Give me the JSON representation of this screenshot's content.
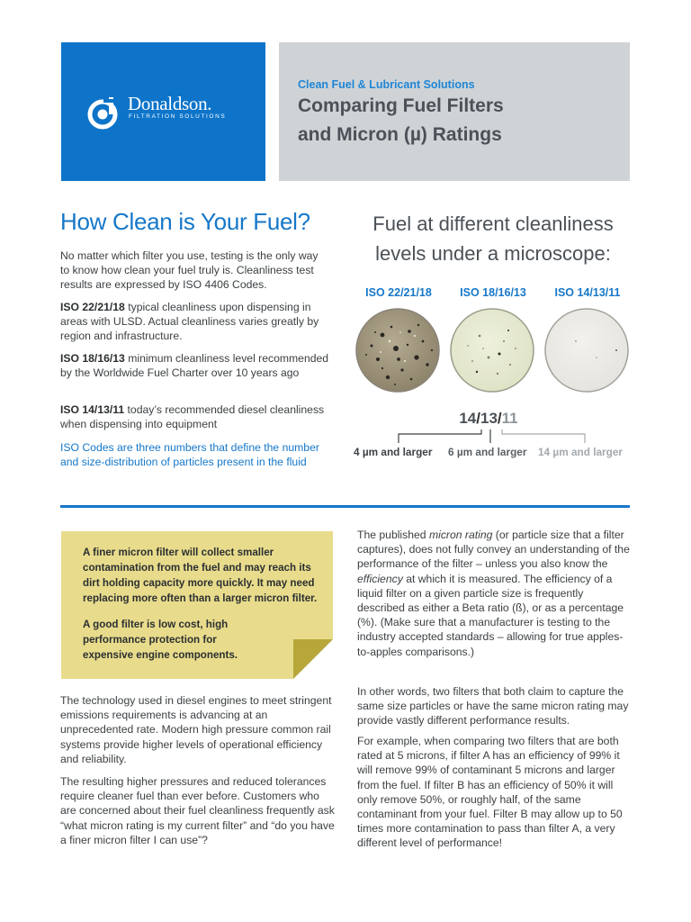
{
  "brand": {
    "name": "Donaldson.",
    "tagline": "FILTRATION SOLUTIONS",
    "color": "#0d74c9"
  },
  "header": {
    "kicker": "Clean Fuel & Lubricant Solutions",
    "title_line1": "Comparing Fuel Filters",
    "title_line2": "and Micron (µ) Ratings"
  },
  "left_top": {
    "heading": "How Clean is Your Fuel?",
    "intro": "No matter which filter you use, testing is the only way to know how clean your fuel truly is. Cleanliness test results are expressed by ISO 4406 Codes.",
    "iso_items": [
      {
        "code": "ISO 22/21/18",
        "text": " typical cleanliness upon dispensing in areas with ULSD. Actual cleanliness varies greatly by region and infrastructure."
      },
      {
        "code": "ISO 18/16/13",
        "text": " minimum cleanliness level recommended by the Worldwide Fuel Charter over 10 years ago"
      },
      {
        "code": "ISO 14/13/11",
        "text": " today’s recommended diesel cleanliness when dispensing into equipment"
      }
    ],
    "note": "ISO Codes are three numbers that define the number and size-distribution of particles present in the fluid"
  },
  "microscope": {
    "heading": "Fuel at different cleanliness levels under a microscope:",
    "samples": [
      "ISO 22/21/18",
      "ISO 18/16/13",
      "ISO 14/13/11"
    ],
    "code_parts": [
      "14",
      "/",
      "13",
      "/",
      "11"
    ],
    "size_labels": [
      "4 µm and larger",
      "6 µm and larger",
      "14 µm and larger"
    ]
  },
  "note_card": {
    "p1": "A finer micron filter will collect smaller contamination from the fuel and may reach its dirt holding capacity more quickly. It may need replacing more often than a larger micron filter.",
    "p2": "A good filter is low cost, high performance protection for expensive engine components.",
    "background": "#e8dc8c",
    "fold_color": "#b7a73a"
  },
  "left_bottom": {
    "p1": "The technology used in diesel engines to meet stringent emissions requirements is advancing at an unprecedented rate. Modern high pressure common rail systems provide higher levels of operational efficiency and reliability.",
    "p2": "The resulting higher pressures and reduced tolerances require cleaner fuel than ever before. Customers who are concerned about their fuel cleanliness frequently ask “what micron rating is my current filter” and “do you have a finer micron filter I can use”?"
  },
  "right": {
    "p1_parts": [
      "The published ",
      "micron rating",
      " (or particle size that a filter captures), does not fully convey an understanding of the performance of the filter – unless you also know the ",
      "efficiency",
      " at which it is measured. The efficiency of a liquid filter on a given particle size is frequently described as either a Beta ratio (ß), or as a percentage (%). (Make sure that a manufacturer is testing to the industry accepted standards – allowing for true apples-to-apples comparisons.)"
    ],
    "p2": "In other words, two filters that both claim to capture the same size particles or have the same micron rating may provide vastly different performance results.",
    "p3": "For example, when comparing two filters that are both rated at 5 microns, if filter A has an efficiency of 99% it will remove 99% of contaminant 5 microns and larger from the fuel. If filter B has an efficiency of 50% it will only remove 50%, or roughly half, of the same contaminant from your fuel. Filter B may allow up to 50 times more contamination to pass than filter A, a very different level of performance!"
  },
  "colors": {
    "accent": "#1677c8",
    "header_gray": "#cfd3d6",
    "title_gray": "#4b5157"
  }
}
